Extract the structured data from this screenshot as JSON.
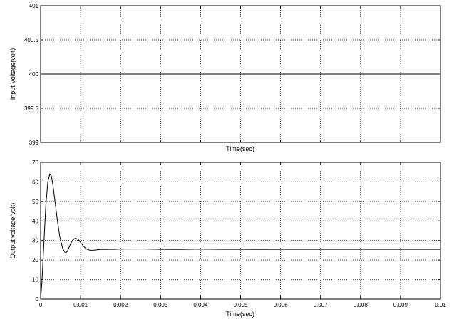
{
  "chart_data": [
    {
      "type": "line",
      "xlabel": "Time(sec)",
      "ylabel": "Input Voltage(volt)",
      "xlim": [
        0,
        0.01
      ],
      "ylim": [
        399,
        401
      ],
      "grid": true,
      "x_ticks": [
        0,
        0.001,
        0.002,
        0.003,
        0.004,
        0.005,
        0.006,
        0.007,
        0.008,
        0.009,
        0.01
      ],
      "x_tick_labels": [],
      "y_ticks": [
        399,
        399.5,
        400,
        400.5,
        401
      ],
      "y_tick_labels": [
        "399",
        "399.5",
        "400",
        "400.5",
        "401"
      ],
      "series": [
        {
          "x": [
            0,
            0.01
          ],
          "y": [
            400,
            400
          ]
        }
      ]
    },
    {
      "type": "line",
      "xlabel": "Time(sec)",
      "ylabel": "Output voltage(volt)",
      "xlim": [
        0,
        0.01
      ],
      "ylim": [
        0,
        70
      ],
      "grid": true,
      "x_ticks": [
        0,
        0.001,
        0.002,
        0.003,
        0.004,
        0.005,
        0.006,
        0.007,
        0.008,
        0.009,
        0.01
      ],
      "x_tick_labels": [
        "0",
        "0.001",
        "0.002",
        "0.003",
        "0.004",
        "0.005",
        "0.006",
        "0.007",
        "0.008",
        "0.009",
        "0.01"
      ],
      "y_ticks": [
        0,
        10,
        20,
        30,
        40,
        50,
        60,
        70
      ],
      "y_tick_labels": [
        "0",
        "10",
        "20",
        "30",
        "40",
        "50",
        "60",
        "70"
      ],
      "series": [
        {
          "x": [
            0,
            3e-05,
            8e-05,
            0.00013,
            0.00018,
            0.00023,
            0.00027,
            0.00031,
            0.00036,
            0.00042,
            0.00048,
            0.00055,
            0.00062,
            0.00067,
            0.00073,
            0.0008,
            0.00087,
            0.00094,
            0.001,
            0.00107,
            0.00115,
            0.00124,
            0.00133,
            0.0015,
            0.0018,
            0.002,
            0.0025,
            0.003,
            0.0035,
            0.004,
            0.0045,
            0.005,
            0.0055,
            0.006,
            0.007,
            0.008,
            0.009,
            0.01
          ],
          "y": [
            0,
            8,
            28,
            48,
            60,
            64,
            63,
            58,
            50,
            40,
            32,
            26,
            23.5,
            24.5,
            27.5,
            30.2,
            31.2,
            30.5,
            29,
            27.2,
            25.6,
            25,
            25.1,
            25.4,
            25.5,
            25.6,
            25.7,
            25.5,
            25.4,
            25.6,
            25.5,
            25.5,
            25.4,
            25.5,
            25.5,
            25.5,
            25.5,
            25.5
          ]
        }
      ]
    }
  ]
}
